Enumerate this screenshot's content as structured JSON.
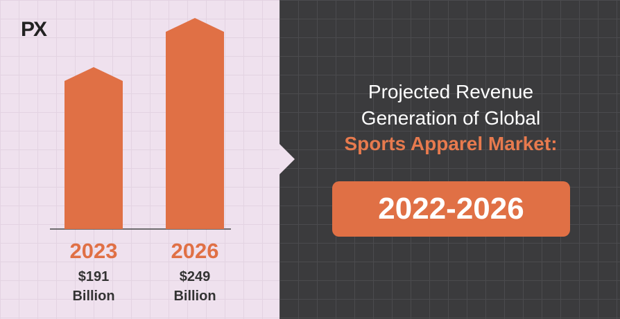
{
  "logo": "PX",
  "title": "Projected Revenue Generation of Global",
  "highlight": "Sports Apparel Market:",
  "period": "2022-2026",
  "chart_data": {
    "type": "bar",
    "categories": [
      "2023",
      "2026"
    ],
    "values": [
      191,
      249
    ],
    "value_labels": [
      "$191 Billion",
      "$249 Billion"
    ],
    "color": "#e07045"
  }
}
